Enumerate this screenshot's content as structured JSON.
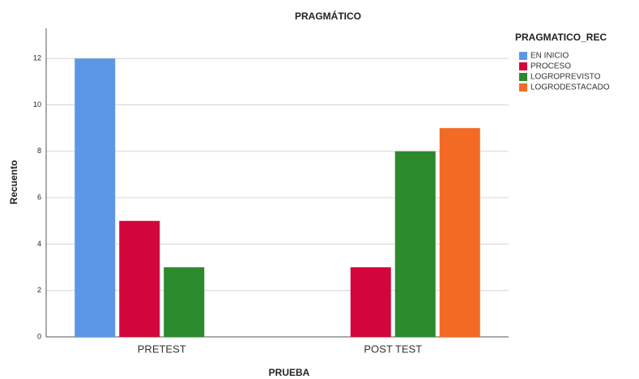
{
  "chart_data": {
    "type": "bar",
    "title": "PRAGMÁTICO",
    "x_label": "PRUEBA",
    "y_label": "Recuento",
    "categories": [
      "PRETEST",
      "POST TEST"
    ],
    "series": [
      {
        "name": "EN INICIO",
        "color": "#5b97e4",
        "values": [
          12,
          0
        ]
      },
      {
        "name": "PROCESO",
        "color": "#d3063c",
        "values": [
          5,
          3
        ]
      },
      {
        "name": "LOGROPREVISTO",
        "color": "#2b8a2b",
        "values": [
          3,
          8
        ]
      },
      {
        "name": "LOGRODESTACADO",
        "color": "#f36a24",
        "values": [
          0,
          9
        ]
      }
    ],
    "legend_title": "PRAGMATICO_REC",
    "legend": "right",
    "ylim": [
      0,
      13.3
    ],
    "yticks": [
      0,
      2,
      4,
      6,
      8,
      10,
      12
    ],
    "grid": true
  }
}
